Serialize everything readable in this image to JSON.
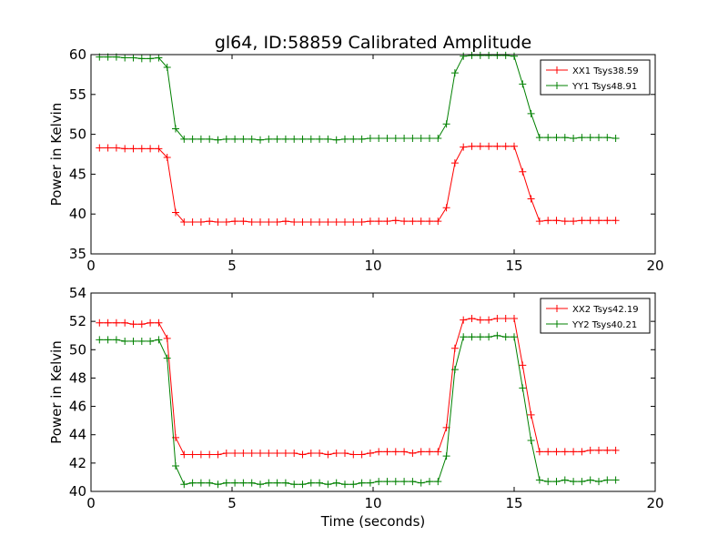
{
  "figure": {
    "title": "gl64, ID:58859 Calibrated Amplitude",
    "xlabel": "Time (seconds)"
  },
  "chart_data": [
    {
      "type": "line",
      "title": "gl64, ID:58859 Calibrated Amplitude",
      "xlabel": "",
      "ylabel": "Power in Kelvin",
      "xlim": [
        0,
        20
      ],
      "ylim": [
        35,
        60
      ],
      "xticks": [
        0,
        5,
        10,
        15,
        20
      ],
      "yticks": [
        35,
        40,
        45,
        50,
        55,
        60
      ],
      "grid": false,
      "legend_position": "top-right",
      "x": [
        0.3,
        0.6,
        0.9,
        1.2,
        1.5,
        1.8,
        2.1,
        2.4,
        2.7,
        3.0,
        3.3,
        3.6,
        3.9,
        4.2,
        4.5,
        4.8,
        5.1,
        5.4,
        5.7,
        6.0,
        6.3,
        6.6,
        6.9,
        7.2,
        7.5,
        7.8,
        8.1,
        8.4,
        8.7,
        9.0,
        9.3,
        9.6,
        9.9,
        10.2,
        10.5,
        10.8,
        11.1,
        11.4,
        11.7,
        12.0,
        12.3,
        12.6,
        12.9,
        13.2,
        13.5,
        13.8,
        14.1,
        14.4,
        14.7,
        15.0,
        15.3,
        15.6,
        15.9,
        16.2,
        16.5,
        16.8,
        17.1,
        17.4,
        17.7,
        18.0,
        18.3,
        18.6
      ],
      "series": [
        {
          "name": "XX1 Tsys38.59",
          "color": "#ff0000",
          "values": [
            48.3,
            48.3,
            48.3,
            48.2,
            48.2,
            48.2,
            48.2,
            48.2,
            47.1,
            40.2,
            39.0,
            39.0,
            39.0,
            39.1,
            39.0,
            39.0,
            39.1,
            39.1,
            39.0,
            39.0,
            39.0,
            39.0,
            39.1,
            39.0,
            39.0,
            39.0,
            39.0,
            39.0,
            39.0,
            39.0,
            39.0,
            39.0,
            39.1,
            39.1,
            39.1,
            39.2,
            39.1,
            39.1,
            39.1,
            39.1,
            39.1,
            40.8,
            46.4,
            48.4,
            48.5,
            48.5,
            48.5,
            48.5,
            48.5,
            48.5,
            45.3,
            41.9,
            39.1,
            39.2,
            39.2,
            39.1,
            39.1,
            39.2,
            39.2,
            39.2,
            39.2,
            39.2
          ]
        },
        {
          "name": "YY1 Tsys48.91",
          "color": "#008000",
          "values": [
            59.7,
            59.7,
            59.7,
            59.6,
            59.6,
            59.5,
            59.5,
            59.6,
            58.4,
            50.7,
            49.4,
            49.4,
            49.4,
            49.4,
            49.3,
            49.4,
            49.4,
            49.4,
            49.4,
            49.3,
            49.4,
            49.4,
            49.4,
            49.4,
            49.4,
            49.4,
            49.4,
            49.4,
            49.3,
            49.4,
            49.4,
            49.4,
            49.5,
            49.5,
            49.5,
            49.5,
            49.5,
            49.5,
            49.5,
            49.5,
            49.5,
            51.3,
            57.7,
            59.8,
            59.9,
            59.9,
            59.9,
            59.9,
            59.9,
            59.8,
            56.3,
            52.6,
            49.6,
            49.6,
            49.6,
            49.6,
            49.5,
            49.6,
            49.6,
            49.6,
            49.6,
            49.5
          ]
        }
      ]
    },
    {
      "type": "line",
      "title": "",
      "xlabel": "Time (seconds)",
      "ylabel": "Power in Kelvin",
      "xlim": [
        0,
        20
      ],
      "ylim": [
        40,
        54
      ],
      "xticks": [
        0,
        5,
        10,
        15,
        20
      ],
      "yticks": [
        40,
        42,
        44,
        46,
        48,
        50,
        52,
        54
      ],
      "grid": false,
      "legend_position": "top-right",
      "x": [
        0.3,
        0.6,
        0.9,
        1.2,
        1.5,
        1.8,
        2.1,
        2.4,
        2.7,
        3.0,
        3.3,
        3.6,
        3.9,
        4.2,
        4.5,
        4.8,
        5.1,
        5.4,
        5.7,
        6.0,
        6.3,
        6.6,
        6.9,
        7.2,
        7.5,
        7.8,
        8.1,
        8.4,
        8.7,
        9.0,
        9.3,
        9.6,
        9.9,
        10.2,
        10.5,
        10.8,
        11.1,
        11.4,
        11.7,
        12.0,
        12.3,
        12.6,
        12.9,
        13.2,
        13.5,
        13.8,
        14.1,
        14.4,
        14.7,
        15.0,
        15.3,
        15.6,
        15.9,
        16.2,
        16.5,
        16.8,
        17.1,
        17.4,
        17.7,
        18.0,
        18.3,
        18.6
      ],
      "series": [
        {
          "name": "XX2 Tsys42.19",
          "color": "#ff0000",
          "values": [
            51.9,
            51.9,
            51.9,
            51.9,
            51.8,
            51.8,
            51.9,
            51.9,
            50.8,
            43.8,
            42.6,
            42.6,
            42.6,
            42.6,
            42.6,
            42.7,
            42.7,
            42.7,
            42.7,
            42.7,
            42.7,
            42.7,
            42.7,
            42.7,
            42.6,
            42.7,
            42.7,
            42.6,
            42.7,
            42.7,
            42.6,
            42.6,
            42.7,
            42.8,
            42.8,
            42.8,
            42.8,
            42.7,
            42.8,
            42.8,
            42.8,
            44.5,
            50.1,
            52.1,
            52.2,
            52.1,
            52.1,
            52.2,
            52.2,
            52.2,
            48.9,
            45.4,
            42.8,
            42.8,
            42.8,
            42.8,
            42.8,
            42.8,
            42.9,
            42.9,
            42.9,
            42.9
          ]
        },
        {
          "name": "YY2 Tsys40.21",
          "color": "#008000",
          "values": [
            50.7,
            50.7,
            50.7,
            50.6,
            50.6,
            50.6,
            50.6,
            50.7,
            49.4,
            41.8,
            40.5,
            40.6,
            40.6,
            40.6,
            40.5,
            40.6,
            40.6,
            40.6,
            40.6,
            40.5,
            40.6,
            40.6,
            40.6,
            40.5,
            40.5,
            40.6,
            40.6,
            40.5,
            40.6,
            40.5,
            40.5,
            40.6,
            40.6,
            40.7,
            40.7,
            40.7,
            40.7,
            40.7,
            40.6,
            40.7,
            40.7,
            42.5,
            48.6,
            50.9,
            50.9,
            50.9,
            50.9,
            51.0,
            50.9,
            50.9,
            47.3,
            43.6,
            40.8,
            40.7,
            40.7,
            40.8,
            40.7,
            40.7,
            40.8,
            40.7,
            40.8,
            40.8
          ]
        }
      ]
    }
  ]
}
